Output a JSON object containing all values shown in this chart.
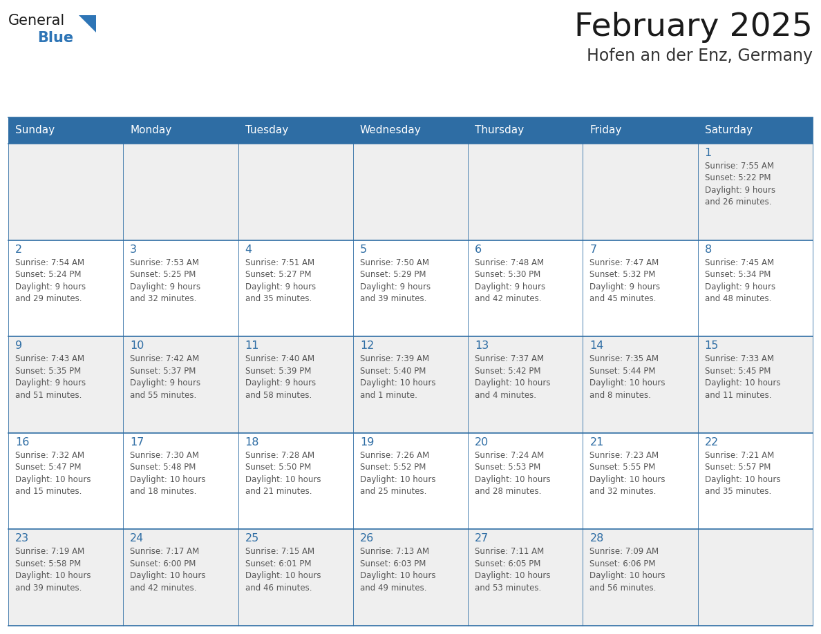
{
  "title": "February 2025",
  "subtitle": "Hofen an der Enz, Germany",
  "days_of_week": [
    "Sunday",
    "Monday",
    "Tuesday",
    "Wednesday",
    "Thursday",
    "Friday",
    "Saturday"
  ],
  "header_bg": "#2E6DA4",
  "header_text": "#FFFFFF",
  "cell_bg_even": "#EFEFEF",
  "cell_bg_white": "#FFFFFF",
  "cell_border": "#2E6DA4",
  "day_number_color": "#2E6DA4",
  "info_text_color": "#555555",
  "title_color": "#1a1a1a",
  "subtitle_color": "#333333",
  "logo_general_color": "#1a1a1a",
  "logo_blue_color": "#2E75B6",
  "calendar_data": [
    [
      null,
      null,
      null,
      null,
      null,
      null,
      {
        "day": "1",
        "sunrise": "7:55 AM",
        "sunset": "5:22 PM",
        "daylight": "9 hours",
        "daylight2": "and 26 minutes."
      }
    ],
    [
      {
        "day": "2",
        "sunrise": "7:54 AM",
        "sunset": "5:24 PM",
        "daylight": "9 hours",
        "daylight2": "and 29 minutes."
      },
      {
        "day": "3",
        "sunrise": "7:53 AM",
        "sunset": "5:25 PM",
        "daylight": "9 hours",
        "daylight2": "and 32 minutes."
      },
      {
        "day": "4",
        "sunrise": "7:51 AM",
        "sunset": "5:27 PM",
        "daylight": "9 hours",
        "daylight2": "and 35 minutes."
      },
      {
        "day": "5",
        "sunrise": "7:50 AM",
        "sunset": "5:29 PM",
        "daylight": "9 hours",
        "daylight2": "and 39 minutes."
      },
      {
        "day": "6",
        "sunrise": "7:48 AM",
        "sunset": "5:30 PM",
        "daylight": "9 hours",
        "daylight2": "and 42 minutes."
      },
      {
        "day": "7",
        "sunrise": "7:47 AM",
        "sunset": "5:32 PM",
        "daylight": "9 hours",
        "daylight2": "and 45 minutes."
      },
      {
        "day": "8",
        "sunrise": "7:45 AM",
        "sunset": "5:34 PM",
        "daylight": "9 hours",
        "daylight2": "and 48 minutes."
      }
    ],
    [
      {
        "day": "9",
        "sunrise": "7:43 AM",
        "sunset": "5:35 PM",
        "daylight": "9 hours",
        "daylight2": "and 51 minutes."
      },
      {
        "day": "10",
        "sunrise": "7:42 AM",
        "sunset": "5:37 PM",
        "daylight": "9 hours",
        "daylight2": "and 55 minutes."
      },
      {
        "day": "11",
        "sunrise": "7:40 AM",
        "sunset": "5:39 PM",
        "daylight": "9 hours",
        "daylight2": "and 58 minutes."
      },
      {
        "day": "12",
        "sunrise": "7:39 AM",
        "sunset": "5:40 PM",
        "daylight": "10 hours",
        "daylight2": "and 1 minute."
      },
      {
        "day": "13",
        "sunrise": "7:37 AM",
        "sunset": "5:42 PM",
        "daylight": "10 hours",
        "daylight2": "and 4 minutes."
      },
      {
        "day": "14",
        "sunrise": "7:35 AM",
        "sunset": "5:44 PM",
        "daylight": "10 hours",
        "daylight2": "and 8 minutes."
      },
      {
        "day": "15",
        "sunrise": "7:33 AM",
        "sunset": "5:45 PM",
        "daylight": "10 hours",
        "daylight2": "and 11 minutes."
      }
    ],
    [
      {
        "day": "16",
        "sunrise": "7:32 AM",
        "sunset": "5:47 PM",
        "daylight": "10 hours",
        "daylight2": "and 15 minutes."
      },
      {
        "day": "17",
        "sunrise": "7:30 AM",
        "sunset": "5:48 PM",
        "daylight": "10 hours",
        "daylight2": "and 18 minutes."
      },
      {
        "day": "18",
        "sunrise": "7:28 AM",
        "sunset": "5:50 PM",
        "daylight": "10 hours",
        "daylight2": "and 21 minutes."
      },
      {
        "day": "19",
        "sunrise": "7:26 AM",
        "sunset": "5:52 PM",
        "daylight": "10 hours",
        "daylight2": "and 25 minutes."
      },
      {
        "day": "20",
        "sunrise": "7:24 AM",
        "sunset": "5:53 PM",
        "daylight": "10 hours",
        "daylight2": "and 28 minutes."
      },
      {
        "day": "21",
        "sunrise": "7:23 AM",
        "sunset": "5:55 PM",
        "daylight": "10 hours",
        "daylight2": "and 32 minutes."
      },
      {
        "day": "22",
        "sunrise": "7:21 AM",
        "sunset": "5:57 PM",
        "daylight": "10 hours",
        "daylight2": "and 35 minutes."
      }
    ],
    [
      {
        "day": "23",
        "sunrise": "7:19 AM",
        "sunset": "5:58 PM",
        "daylight": "10 hours",
        "daylight2": "and 39 minutes."
      },
      {
        "day": "24",
        "sunrise": "7:17 AM",
        "sunset": "6:00 PM",
        "daylight": "10 hours",
        "daylight2": "and 42 minutes."
      },
      {
        "day": "25",
        "sunrise": "7:15 AM",
        "sunset": "6:01 PM",
        "daylight": "10 hours",
        "daylight2": "and 46 minutes."
      },
      {
        "day": "26",
        "sunrise": "7:13 AM",
        "sunset": "6:03 PM",
        "daylight": "10 hours",
        "daylight2": "and 49 minutes."
      },
      {
        "day": "27",
        "sunrise": "7:11 AM",
        "sunset": "6:05 PM",
        "daylight": "10 hours",
        "daylight2": "and 53 minutes."
      },
      {
        "day": "28",
        "sunrise": "7:09 AM",
        "sunset": "6:06 PM",
        "daylight": "10 hours",
        "daylight2": "and 56 minutes."
      },
      null
    ]
  ]
}
